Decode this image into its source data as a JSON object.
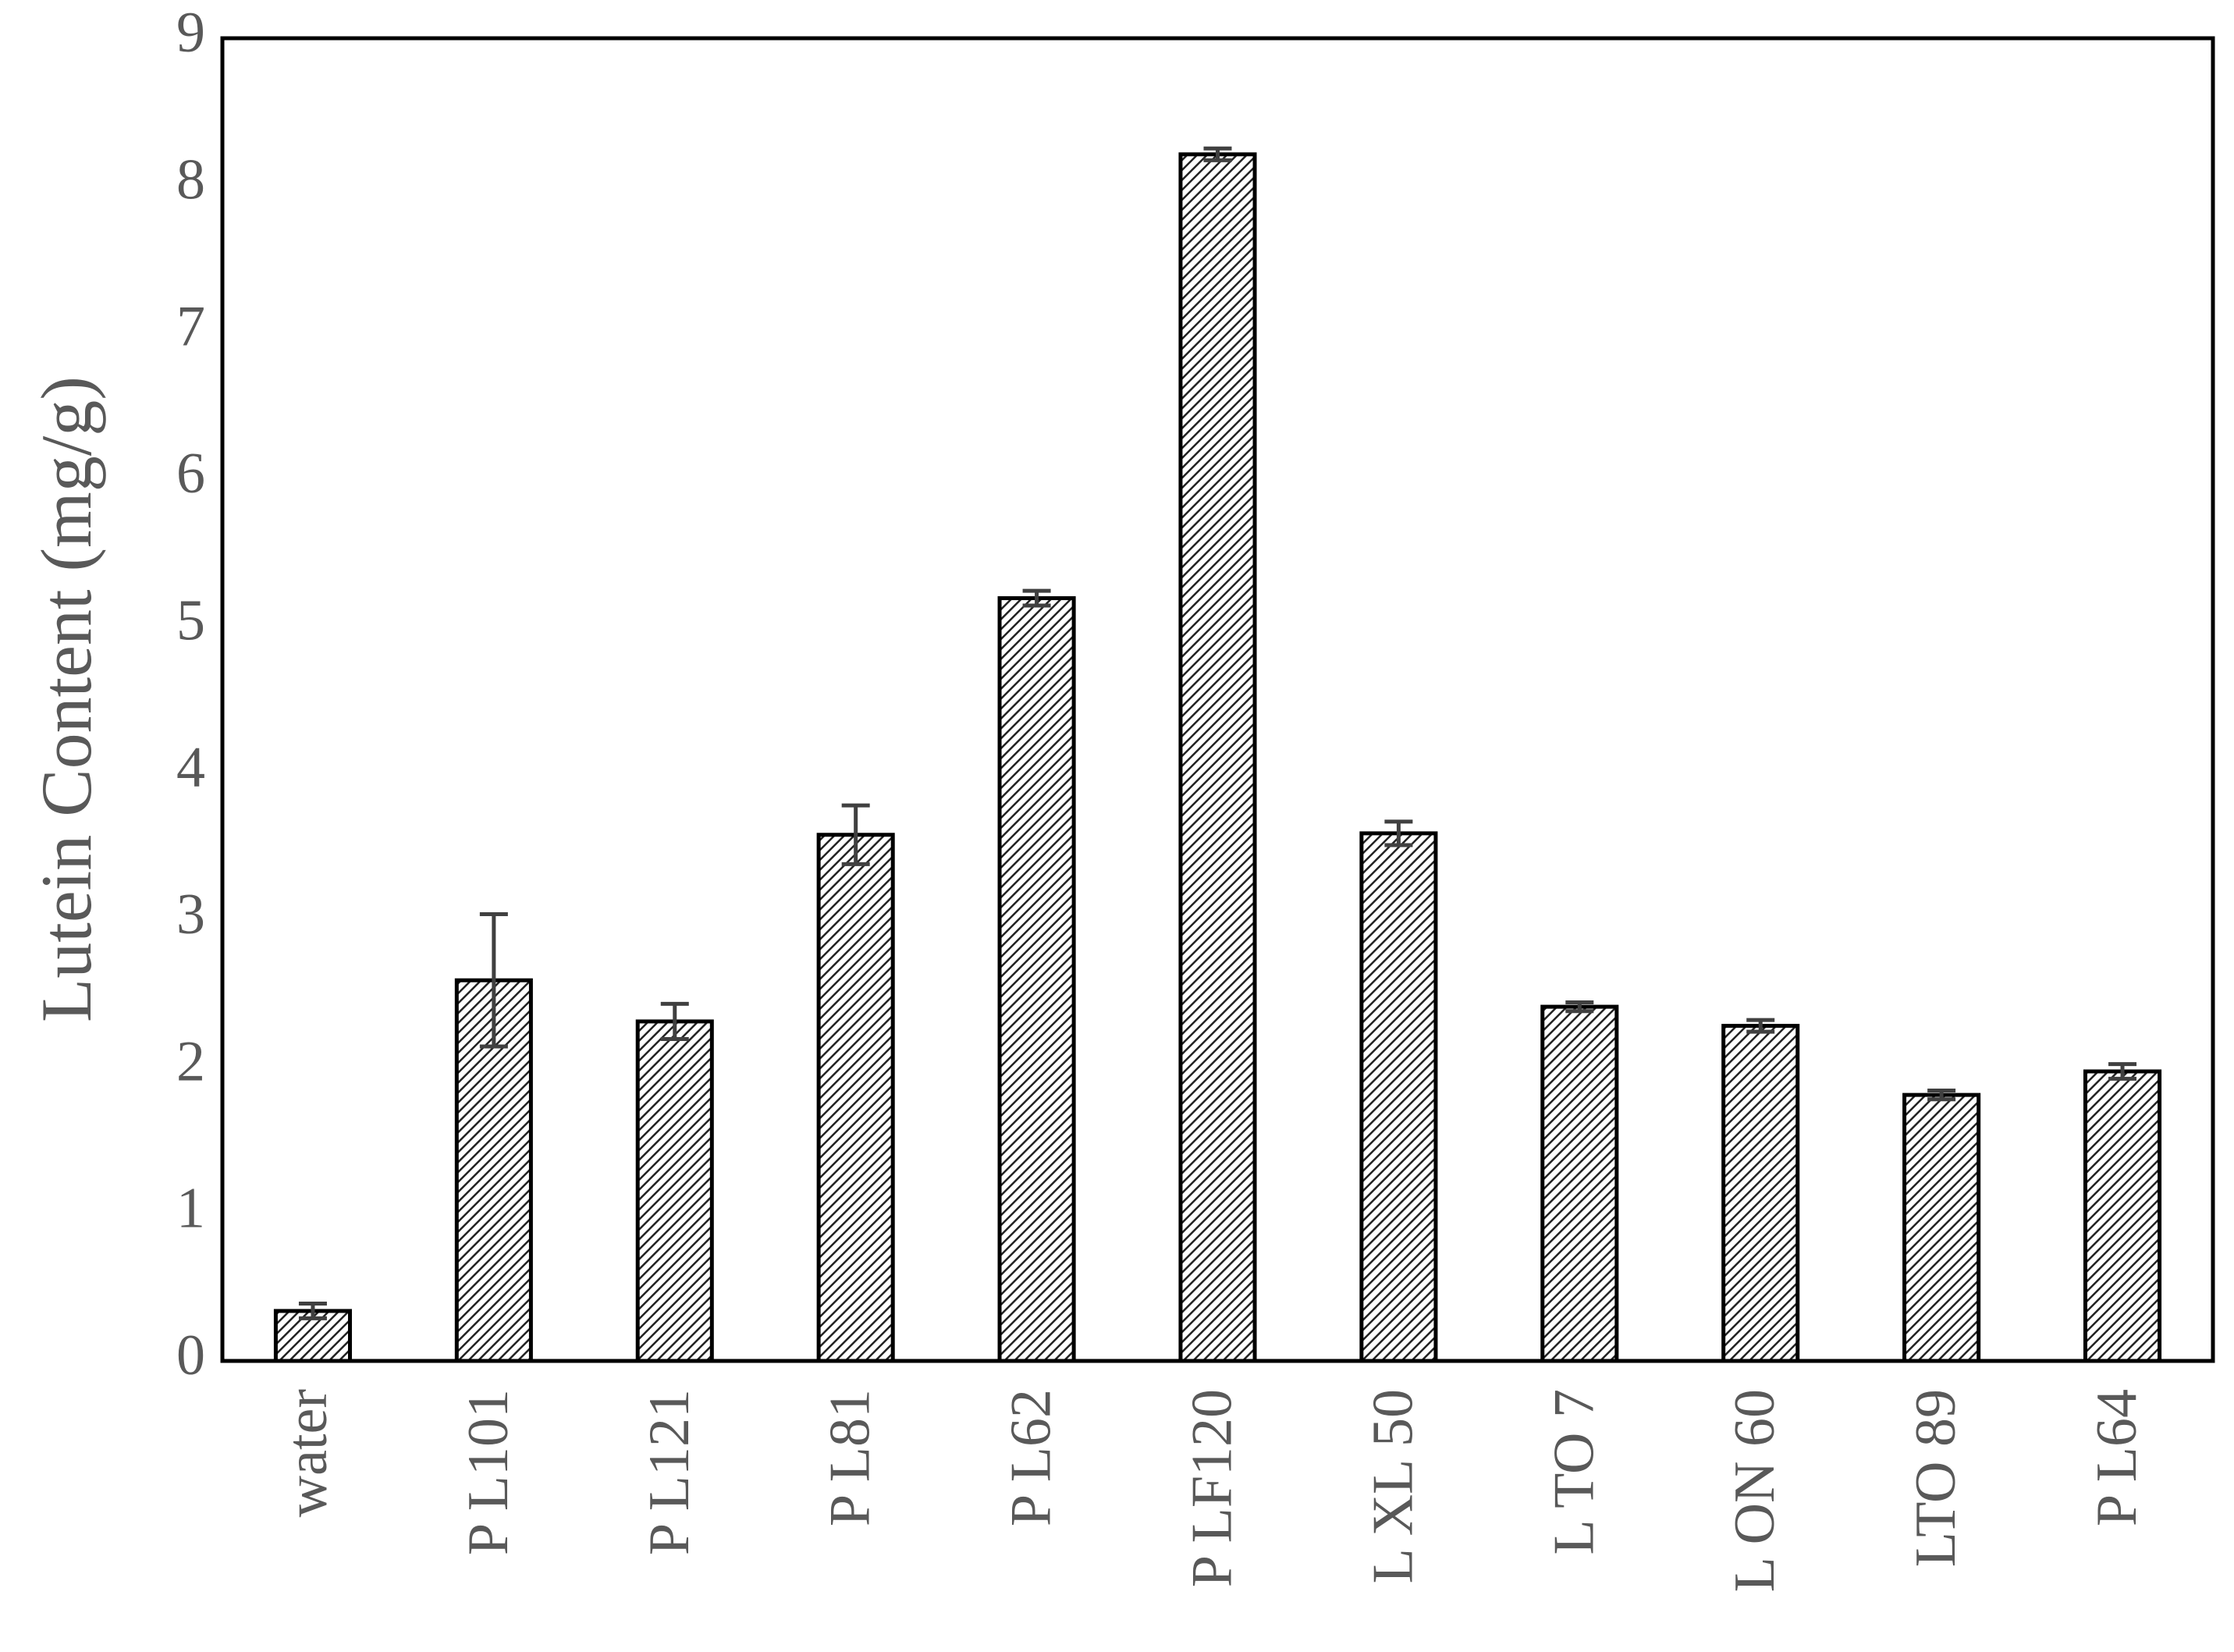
{
  "chart_data": {
    "type": "bar",
    "y_label": "Lutein Content (mg/g)",
    "categories": [
      "water",
      "P L101",
      "P L121",
      "P L81",
      "P L62",
      "P LF120",
      "L XL 50",
      "L TO 7",
      "L ON 60",
      "LTO 89",
      "P L64"
    ],
    "values": [
      0.34,
      2.59,
      2.31,
      3.58,
      5.19,
      8.21,
      3.59,
      2.41,
      2.28,
      1.81,
      1.97
    ],
    "errors": [
      0.05,
      0.45,
      0.12,
      0.2,
      0.05,
      0.04,
      0.08,
      0.03,
      0.04,
      0.03,
      0.05
    ],
    "ylim": [
      0,
      9
    ],
    "yticks": [
      0,
      1,
      2,
      3,
      4,
      5,
      6,
      7,
      8,
      9
    ],
    "grid": false
  }
}
